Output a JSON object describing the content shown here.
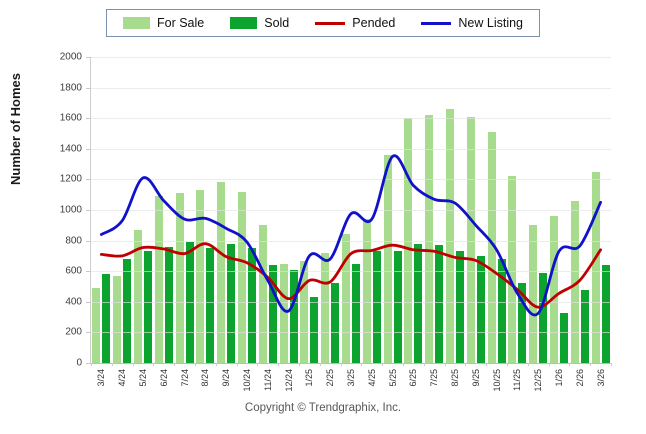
{
  "y_axis_title": "Number of Homes",
  "footer": {
    "copyright": "Copyright © Trendgraphix, Inc."
  },
  "colors": {
    "for_sale": "#a7db8d",
    "sold": "#0da32f",
    "pended": "#c00000",
    "new_listing": "#1111cc",
    "grid": "#e2e2e2",
    "legend_border": "#7e8fae"
  },
  "legend": {
    "items": [
      {
        "label": "For Sale",
        "type": "box",
        "color": "#a7db8d"
      },
      {
        "label": "Sold",
        "type": "box",
        "color": "#0da32f"
      },
      {
        "label": "Pended",
        "type": "line",
        "color": "#c00000"
      },
      {
        "label": "New Listing",
        "type": "line",
        "color": "#1111cc"
      }
    ]
  },
  "chart_data": {
    "type": "bar",
    "title": "",
    "xlabel": "",
    "ylabel": "Number of Homes",
    "ylim": [
      0,
      2000
    ],
    "ytick_step": 200,
    "grid": true,
    "legend_position": "top",
    "categories": [
      "3/24",
      "4/24",
      "5/24",
      "6/24",
      "7/24",
      "8/24",
      "9/24",
      "10/24",
      "11/24",
      "12/24",
      "1/25",
      "2/25",
      "3/25",
      "4/25",
      "5/25",
      "6/25",
      "7/25",
      "8/25",
      "9/25",
      "10/25",
      "11/25",
      "12/25",
      "1/26",
      "2/26",
      "3/26"
    ],
    "series": [
      {
        "name": "For Sale",
        "render": "bar",
        "color": "#a7db8d",
        "values": [
          490,
          570,
          870,
          1090,
          1110,
          1130,
          1185,
          1120,
          900,
          650,
          670,
          720,
          840,
          940,
          1360,
          1600,
          1620,
          1660,
          1610,
          1510,
          1220,
          900,
          960,
          1060,
          1250
        ]
      },
      {
        "name": "Sold",
        "render": "bar",
        "color": "#0da32f",
        "values": [
          580,
          680,
          730,
          760,
          790,
          755,
          780,
          750,
          640,
          605,
          430,
          525,
          650,
          730,
          735,
          780,
          770,
          730,
          700,
          680,
          525,
          590,
          330,
          480,
          640
        ]
      },
      {
        "name": "Pended",
        "render": "line",
        "color": "#c00000",
        "values": [
          710,
          700,
          755,
          745,
          715,
          780,
          695,
          655,
          560,
          420,
          540,
          530,
          715,
          735,
          770,
          740,
          730,
          690,
          670,
          585,
          480,
          365,
          455,
          540,
          740
        ]
      },
      {
        "name": "New Listing",
        "render": "line",
        "color": "#1111cc",
        "values": [
          840,
          930,
          1210,
          1060,
          940,
          945,
          880,
          790,
          540,
          340,
          700,
          680,
          975,
          940,
          1350,
          1160,
          1070,
          1045,
          900,
          740,
          455,
          325,
          730,
          765,
          1050
        ]
      }
    ]
  }
}
